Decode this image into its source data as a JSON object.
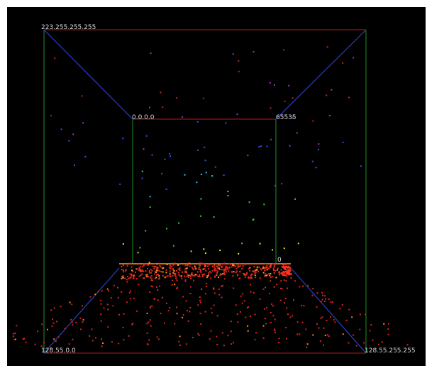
{
  "labels": {
    "top_left": "223.255.255.255",
    "bottom_left": "128.55.0.0",
    "bottom_right": "128.55.255.255",
    "inner_top_left": "0.0.0.0",
    "inner_top_right": "65535",
    "inner_bottom_right": "0"
  },
  "colors": {
    "background": "#000000",
    "outer_frame": "#b01c1c",
    "vertical_edges": "#1f8f2a",
    "diagonals": "#2c3fb8",
    "inner_top_edge": "#b01c1c",
    "inner_floor_edge": "#d86a10",
    "label": "#d8d8d8"
  }
}
